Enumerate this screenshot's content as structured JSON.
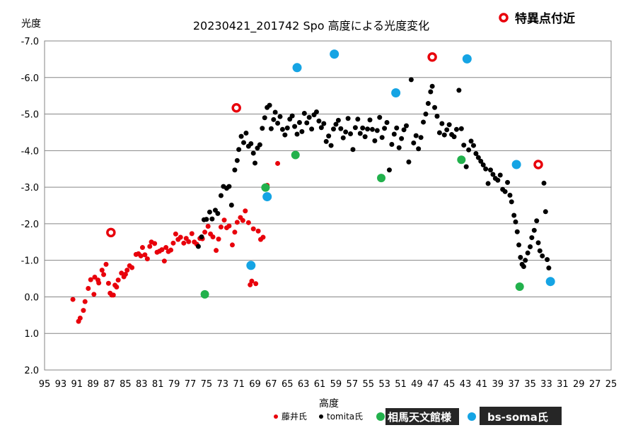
{
  "chart_data": {
    "type": "scatter",
    "title": "20230421_201742  Spo    高度による光度変化",
    "xlabel": "高度",
    "ylabel": "光度",
    "xlim": [
      95,
      25
    ],
    "ylim": [
      2.0,
      -7.0
    ],
    "x_ticks": [
      "95",
      "93",
      "91",
      "89",
      "87",
      "85",
      "83",
      "81",
      "79",
      "77",
      "75",
      "73",
      "71",
      "69",
      "67",
      "65",
      "63",
      "61",
      "59",
      "57",
      "55",
      "53",
      "51",
      "49",
      "47",
      "45",
      "43",
      "41",
      "39",
      "37",
      "35",
      "33",
      "31",
      "29",
      "27",
      "25"
    ],
    "y_ticks": [
      "-7.0",
      "-6.0",
      "-5.0",
      "-4.0",
      "-3.0",
      "-2.0",
      "-1.0",
      "0.0",
      "1.0",
      "2.0"
    ],
    "grid": "horizontal",
    "annotation": "特異点付近",
    "series": [
      {
        "name": "藤井氏",
        "color": "#e8000b",
        "points": [
          [
            91.5,
            0.07
          ],
          [
            90.8,
            0.67
          ],
          [
            90.6,
            0.58
          ],
          [
            90.2,
            0.37
          ],
          [
            90.0,
            0.13
          ],
          [
            89.6,
            -0.23
          ],
          [
            89.3,
            -0.47
          ],
          [
            88.9,
            -0.07
          ],
          [
            88.8,
            -0.54
          ],
          [
            88.4,
            -0.46
          ],
          [
            88.3,
            -0.38
          ],
          [
            87.9,
            -0.73
          ],
          [
            87.7,
            -0.61
          ],
          [
            87.4,
            -0.89
          ],
          [
            87.1,
            -0.37
          ],
          [
            86.9,
            -0.1
          ],
          [
            86.7,
            -0.05
          ],
          [
            86.5,
            -0.05
          ],
          [
            86.3,
            -0.32
          ],
          [
            86.1,
            -0.27
          ],
          [
            85.9,
            -0.46
          ],
          [
            85.5,
            -0.65
          ],
          [
            85.2,
            -0.55
          ],
          [
            85.0,
            -0.62
          ],
          [
            84.8,
            -0.73
          ],
          [
            84.5,
            -0.85
          ],
          [
            84.2,
            -0.8
          ],
          [
            83.7,
            -1.16
          ],
          [
            83.4,
            -1.18
          ],
          [
            83.1,
            -1.12
          ],
          [
            82.9,
            -1.35
          ],
          [
            82.6,
            -1.15
          ],
          [
            82.3,
            -1.04
          ],
          [
            82.0,
            -1.38
          ],
          [
            81.8,
            -1.5
          ],
          [
            81.4,
            -1.46
          ],
          [
            81.1,
            -1.22
          ],
          [
            80.8,
            -1.25
          ],
          [
            80.5,
            -1.29
          ],
          [
            80.2,
            -0.98
          ],
          [
            80.0,
            -1.35
          ],
          [
            79.7,
            -1.24
          ],
          [
            79.4,
            -1.28
          ],
          [
            79.1,
            -1.47
          ],
          [
            78.8,
            -1.72
          ],
          [
            78.5,
            -1.57
          ],
          [
            78.2,
            -1.63
          ],
          [
            77.8,
            -1.47
          ],
          [
            77.5,
            -1.6
          ],
          [
            77.2,
            -1.51
          ],
          [
            76.8,
            -1.73
          ],
          [
            76.5,
            -1.5
          ],
          [
            76.2,
            -1.44
          ],
          [
            75.8,
            -1.6
          ],
          [
            75.5,
            -1.59
          ],
          [
            75.2,
            -1.77
          ],
          [
            74.8,
            -1.93
          ],
          [
            74.5,
            -1.72
          ],
          [
            74.2,
            -1.64
          ],
          [
            73.8,
            -1.27
          ],
          [
            73.5,
            -1.58
          ],
          [
            73.2,
            -1.91
          ],
          [
            72.8,
            -2.1
          ],
          [
            72.5,
            -1.89
          ],
          [
            72.2,
            -1.94
          ],
          [
            71.8,
            -1.42
          ],
          [
            71.5,
            -1.77
          ],
          [
            71.2,
            -2.04
          ],
          [
            70.8,
            -2.17
          ],
          [
            70.5,
            -2.09
          ],
          [
            70.2,
            -2.35
          ],
          [
            69.8,
            -2.03
          ],
          [
            69.6,
            -0.33
          ],
          [
            69.4,
            -0.43
          ],
          [
            69.2,
            -1.86
          ],
          [
            68.9,
            -0.36
          ],
          [
            68.6,
            -1.8
          ],
          [
            68.3,
            -1.57
          ],
          [
            68.0,
            -1.63
          ],
          [
            66.2,
            -3.65
          ],
          [
            67.5,
            -3.05
          ]
        ]
      },
      {
        "name": "tomita氏",
        "color": "#000000",
        "points": [
          [
            76.0,
            -1.38
          ],
          [
            75.6,
            -1.64
          ],
          [
            75.3,
            -2.11
          ],
          [
            75.0,
            -2.12
          ],
          [
            74.6,
            -2.32
          ],
          [
            74.3,
            -2.13
          ],
          [
            73.9,
            -2.37
          ],
          [
            73.6,
            -2.28
          ],
          [
            73.2,
            -2.77
          ],
          [
            72.9,
            -3.02
          ],
          [
            72.5,
            -2.97
          ],
          [
            72.2,
            -3.02
          ],
          [
            71.9,
            -2.51
          ],
          [
            71.5,
            -3.47
          ],
          [
            71.2,
            -3.73
          ],
          [
            71.0,
            -4.03
          ],
          [
            70.7,
            -4.39
          ],
          [
            70.4,
            -4.22
          ],
          [
            70.1,
            -4.48
          ],
          [
            69.8,
            -4.12
          ],
          [
            69.5,
            -4.19
          ],
          [
            69.2,
            -3.93
          ],
          [
            69.0,
            -3.66
          ],
          [
            68.7,
            -4.07
          ],
          [
            68.4,
            -4.16
          ],
          [
            68.1,
            -4.61
          ],
          [
            67.8,
            -4.9
          ],
          [
            67.5,
            -5.18
          ],
          [
            67.2,
            -5.24
          ],
          [
            67.0,
            -4.6
          ],
          [
            66.7,
            -4.85
          ],
          [
            66.5,
            -5.05
          ],
          [
            66.2,
            -4.75
          ],
          [
            65.9,
            -4.93
          ],
          [
            65.6,
            -4.58
          ],
          [
            65.3,
            -4.43
          ],
          [
            65.0,
            -4.62
          ],
          [
            64.7,
            -4.86
          ],
          [
            64.4,
            -4.95
          ],
          [
            64.1,
            -4.66
          ],
          [
            63.8,
            -4.45
          ],
          [
            63.5,
            -4.77
          ],
          [
            63.2,
            -4.52
          ],
          [
            62.9,
            -5.02
          ],
          [
            62.6,
            -4.76
          ],
          [
            62.3,
            -4.91
          ],
          [
            62.0,
            -4.59
          ],
          [
            61.7,
            -4.98
          ],
          [
            61.4,
            -5.06
          ],
          [
            61.1,
            -4.81
          ],
          [
            60.8,
            -4.63
          ],
          [
            60.5,
            -4.74
          ],
          [
            60.2,
            -4.25
          ],
          [
            59.9,
            -4.4
          ],
          [
            59.6,
            -4.14
          ],
          [
            59.3,
            -4.59
          ],
          [
            59.0,
            -4.72
          ],
          [
            58.7,
            -4.83
          ],
          [
            58.4,
            -4.6
          ],
          [
            58.1,
            -4.35
          ],
          [
            57.8,
            -4.51
          ],
          [
            57.5,
            -4.88
          ],
          [
            57.2,
            -4.46
          ],
          [
            56.9,
            -4.03
          ],
          [
            56.6,
            -4.63
          ],
          [
            56.3,
            -4.86
          ],
          [
            56.0,
            -4.47
          ],
          [
            55.7,
            -4.62
          ],
          [
            55.4,
            -4.38
          ],
          [
            55.1,
            -4.59
          ],
          [
            54.8,
            -4.84
          ],
          [
            54.5,
            -4.58
          ],
          [
            54.2,
            -4.27
          ],
          [
            53.9,
            -4.55
          ],
          [
            53.6,
            -4.91
          ],
          [
            53.3,
            -4.36
          ],
          [
            53.0,
            -4.61
          ],
          [
            52.7,
            -4.77
          ],
          [
            52.4,
            -3.47
          ],
          [
            52.1,
            -4.17
          ],
          [
            51.8,
            -4.45
          ],
          [
            51.5,
            -4.62
          ],
          [
            51.2,
            -4.08
          ],
          [
            50.9,
            -4.33
          ],
          [
            50.6,
            -4.57
          ],
          [
            50.3,
            -4.68
          ],
          [
            50.0,
            -3.69
          ],
          [
            49.7,
            -5.94
          ],
          [
            49.4,
            -4.21
          ],
          [
            49.1,
            -4.41
          ],
          [
            48.8,
            -4.05
          ],
          [
            48.5,
            -4.36
          ],
          [
            48.2,
            -4.78
          ],
          [
            47.9,
            -5.0
          ],
          [
            47.6,
            -5.29
          ],
          [
            47.3,
            -5.61
          ],
          [
            47.1,
            -5.76
          ],
          [
            46.8,
            -5.18
          ],
          [
            46.5,
            -4.94
          ],
          [
            46.2,
            -4.49
          ],
          [
            45.9,
            -4.74
          ],
          [
            45.6,
            -4.43
          ],
          [
            45.3,
            -4.57
          ],
          [
            45.0,
            -4.71
          ],
          [
            44.7,
            -4.44
          ],
          [
            44.4,
            -4.38
          ],
          [
            44.1,
            -4.58
          ],
          [
            43.8,
            -5.65
          ],
          [
            43.5,
            -4.6
          ],
          [
            43.2,
            -4.15
          ],
          [
            42.9,
            -3.56
          ],
          [
            42.6,
            -4.02
          ],
          [
            42.3,
            -4.26
          ],
          [
            42.0,
            -4.14
          ],
          [
            41.7,
            -3.92
          ],
          [
            41.4,
            -3.81
          ],
          [
            41.1,
            -3.71
          ],
          [
            40.8,
            -3.61
          ],
          [
            40.5,
            -3.5
          ],
          [
            40.2,
            -3.1
          ],
          [
            39.9,
            -3.47
          ],
          [
            39.6,
            -3.35
          ],
          [
            39.3,
            -3.24
          ],
          [
            39.0,
            -3.19
          ],
          [
            38.7,
            -3.33
          ],
          [
            38.4,
            -2.94
          ],
          [
            38.1,
            -2.88
          ],
          [
            37.8,
            -3.13
          ],
          [
            37.5,
            -2.78
          ],
          [
            37.3,
            -2.6
          ],
          [
            37.0,
            -2.23
          ],
          [
            36.8,
            -2.05
          ],
          [
            36.6,
            -1.78
          ],
          [
            36.4,
            -1.42
          ],
          [
            36.2,
            -1.08
          ],
          [
            36.0,
            -0.89
          ],
          [
            35.8,
            -0.83
          ],
          [
            35.6,
            -1.0
          ],
          [
            35.3,
            -1.2
          ],
          [
            35.0,
            -1.37
          ],
          [
            34.8,
            -1.62
          ],
          [
            34.5,
            -1.82
          ],
          [
            34.2,
            -2.08
          ],
          [
            34.0,
            -1.48
          ],
          [
            33.8,
            -1.26
          ],
          [
            33.5,
            -1.12
          ],
          [
            33.3,
            -3.11
          ],
          [
            33.1,
            -2.33
          ],
          [
            32.9,
            -1.02
          ],
          [
            32.7,
            -0.79
          ]
        ]
      },
      {
        "name": "相馬天文館様",
        "color": "#22b14c",
        "points": [
          [
            75.2,
            -0.07
          ],
          [
            67.7,
            -2.99
          ],
          [
            64.0,
            -3.88
          ],
          [
            53.4,
            -3.25
          ],
          [
            43.5,
            -3.75
          ],
          [
            36.3,
            -0.28
          ]
        ]
      },
      {
        "name": "bs-soma氏",
        "color": "#15a4e4",
        "points": [
          [
            69.5,
            -0.86
          ],
          [
            67.5,
            -2.74
          ],
          [
            63.8,
            -6.27
          ],
          [
            59.2,
            -6.64
          ],
          [
            51.6,
            -5.58
          ],
          [
            42.8,
            -6.51
          ],
          [
            36.7,
            -3.62
          ],
          [
            32.5,
            -0.42
          ]
        ]
      },
      {
        "name": "特異点付近",
        "color": "#e8000b",
        "points": [
          [
            86.8,
            -1.76
          ],
          [
            71.3,
            -5.17
          ],
          [
            47.1,
            -6.56
          ],
          [
            34.0,
            -3.62
          ]
        ]
      }
    ]
  }
}
